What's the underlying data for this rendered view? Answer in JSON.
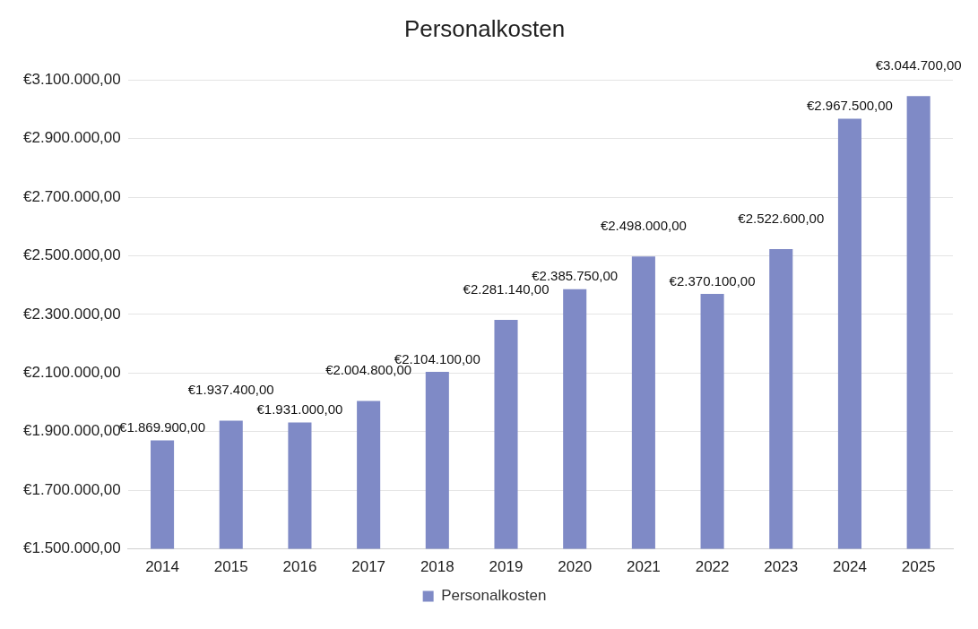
{
  "chart_data": {
    "type": "bar",
    "title": "Personalkosten",
    "categories": [
      "2014",
      "2015",
      "2016",
      "2017",
      "2018",
      "2019",
      "2020",
      "2021",
      "2022",
      "2023",
      "2024",
      "2025"
    ],
    "series": [
      {
        "name": "Personalkosten",
        "color": "#7f8ac6",
        "values": [
          1869900,
          1937400,
          1931000,
          2004800,
          2104100,
          2281140,
          2385750,
          2498000,
          2370100,
          2522600,
          2967500,
          3044700
        ],
        "value_labels": [
          "€1.869.900,00",
          "€1.937.400,00",
          "€1.931.000,00",
          "€2.004.800,00",
          "€2.104.100,00",
          "€2.281.140,00",
          "€2.385.750,00",
          "€2.498.000,00",
          "€2.370.100,00",
          "€2.522.600,00",
          "€2.967.500,00",
          "€3.044.700,00"
        ]
      }
    ],
    "ylim": [
      1500000,
      3100000
    ],
    "yticks": [
      {
        "value": 1500000,
        "label": "€1.500.000,00"
      },
      {
        "value": 1700000,
        "label": "€1.700.000,00"
      },
      {
        "value": 1900000,
        "label": "€1.900.000,00"
      },
      {
        "value": 2100000,
        "label": "€2.100.000,00"
      },
      {
        "value": 2300000,
        "label": "€2.300.000,00"
      },
      {
        "value": 2500000,
        "label": "€2.500.000,00"
      },
      {
        "value": 2700000,
        "label": "€2.700.000,00"
      },
      {
        "value": 2900000,
        "label": "€2.900.000,00"
      },
      {
        "value": 3100000,
        "label": "€3.100.000,00"
      }
    ],
    "grid": "y",
    "legend": "bottom"
  }
}
